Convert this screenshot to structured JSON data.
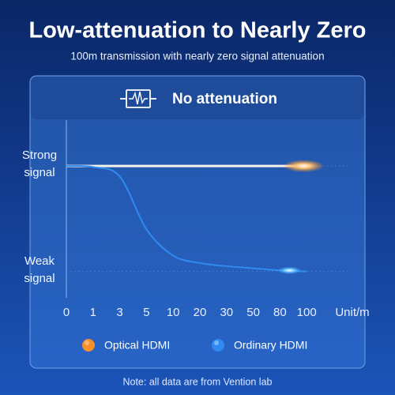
{
  "chart_data": {
    "type": "line",
    "title": "Low-attenuation to Nearly Zero",
    "subtitle": "100m transmission with nearly zero signal attenuation",
    "annotation": "No attenuation",
    "x_label": "Unit/m",
    "note": "Note: all data are from Vention lab",
    "categories": [
      "0",
      "1",
      "3",
      "5",
      "10",
      "20",
      "30",
      "50",
      "80",
      "100"
    ],
    "ylim": [
      -0.25,
      1.45
    ],
    "yticks": [
      {
        "value": 1,
        "label": "Strong signal"
      },
      {
        "value": 0,
        "label": "Weak signal"
      }
    ],
    "series": [
      {
        "name": "Optical HDMI",
        "color": "#f5902a",
        "values": [
          1,
          1,
          1,
          1,
          1,
          1,
          1,
          1,
          1,
          1
        ]
      },
      {
        "name": "Ordinary HDMI",
        "color": "#2f8bf0",
        "values": [
          1,
          0.99,
          0.9,
          0.4,
          0.15,
          0.08,
          0.05,
          0.03,
          0.01,
          0
        ]
      }
    ],
    "grid": true
  }
}
